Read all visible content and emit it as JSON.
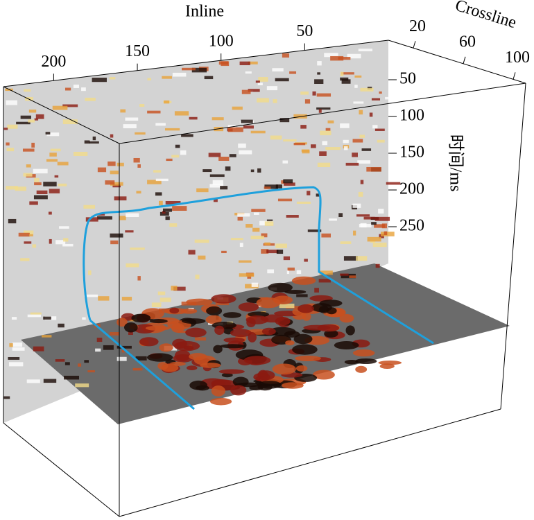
{
  "chart_data": {
    "type": "seismic-3d",
    "inline_label": "Inline",
    "inline_lim": [
      0,
      230
    ],
    "inline_ticks": [
      200,
      150,
      100,
      50
    ],
    "crossline_label": "Crossline",
    "crossline_lim": [
      0,
      110
    ],
    "crossline_ticks": [
      20,
      60,
      100
    ],
    "time_label": "时间/ms",
    "time_lim": [
      0,
      300
    ],
    "time_ticks": [
      50,
      100,
      150,
      200,
      250
    ],
    "outline_color": "#1ea0dc"
  }
}
